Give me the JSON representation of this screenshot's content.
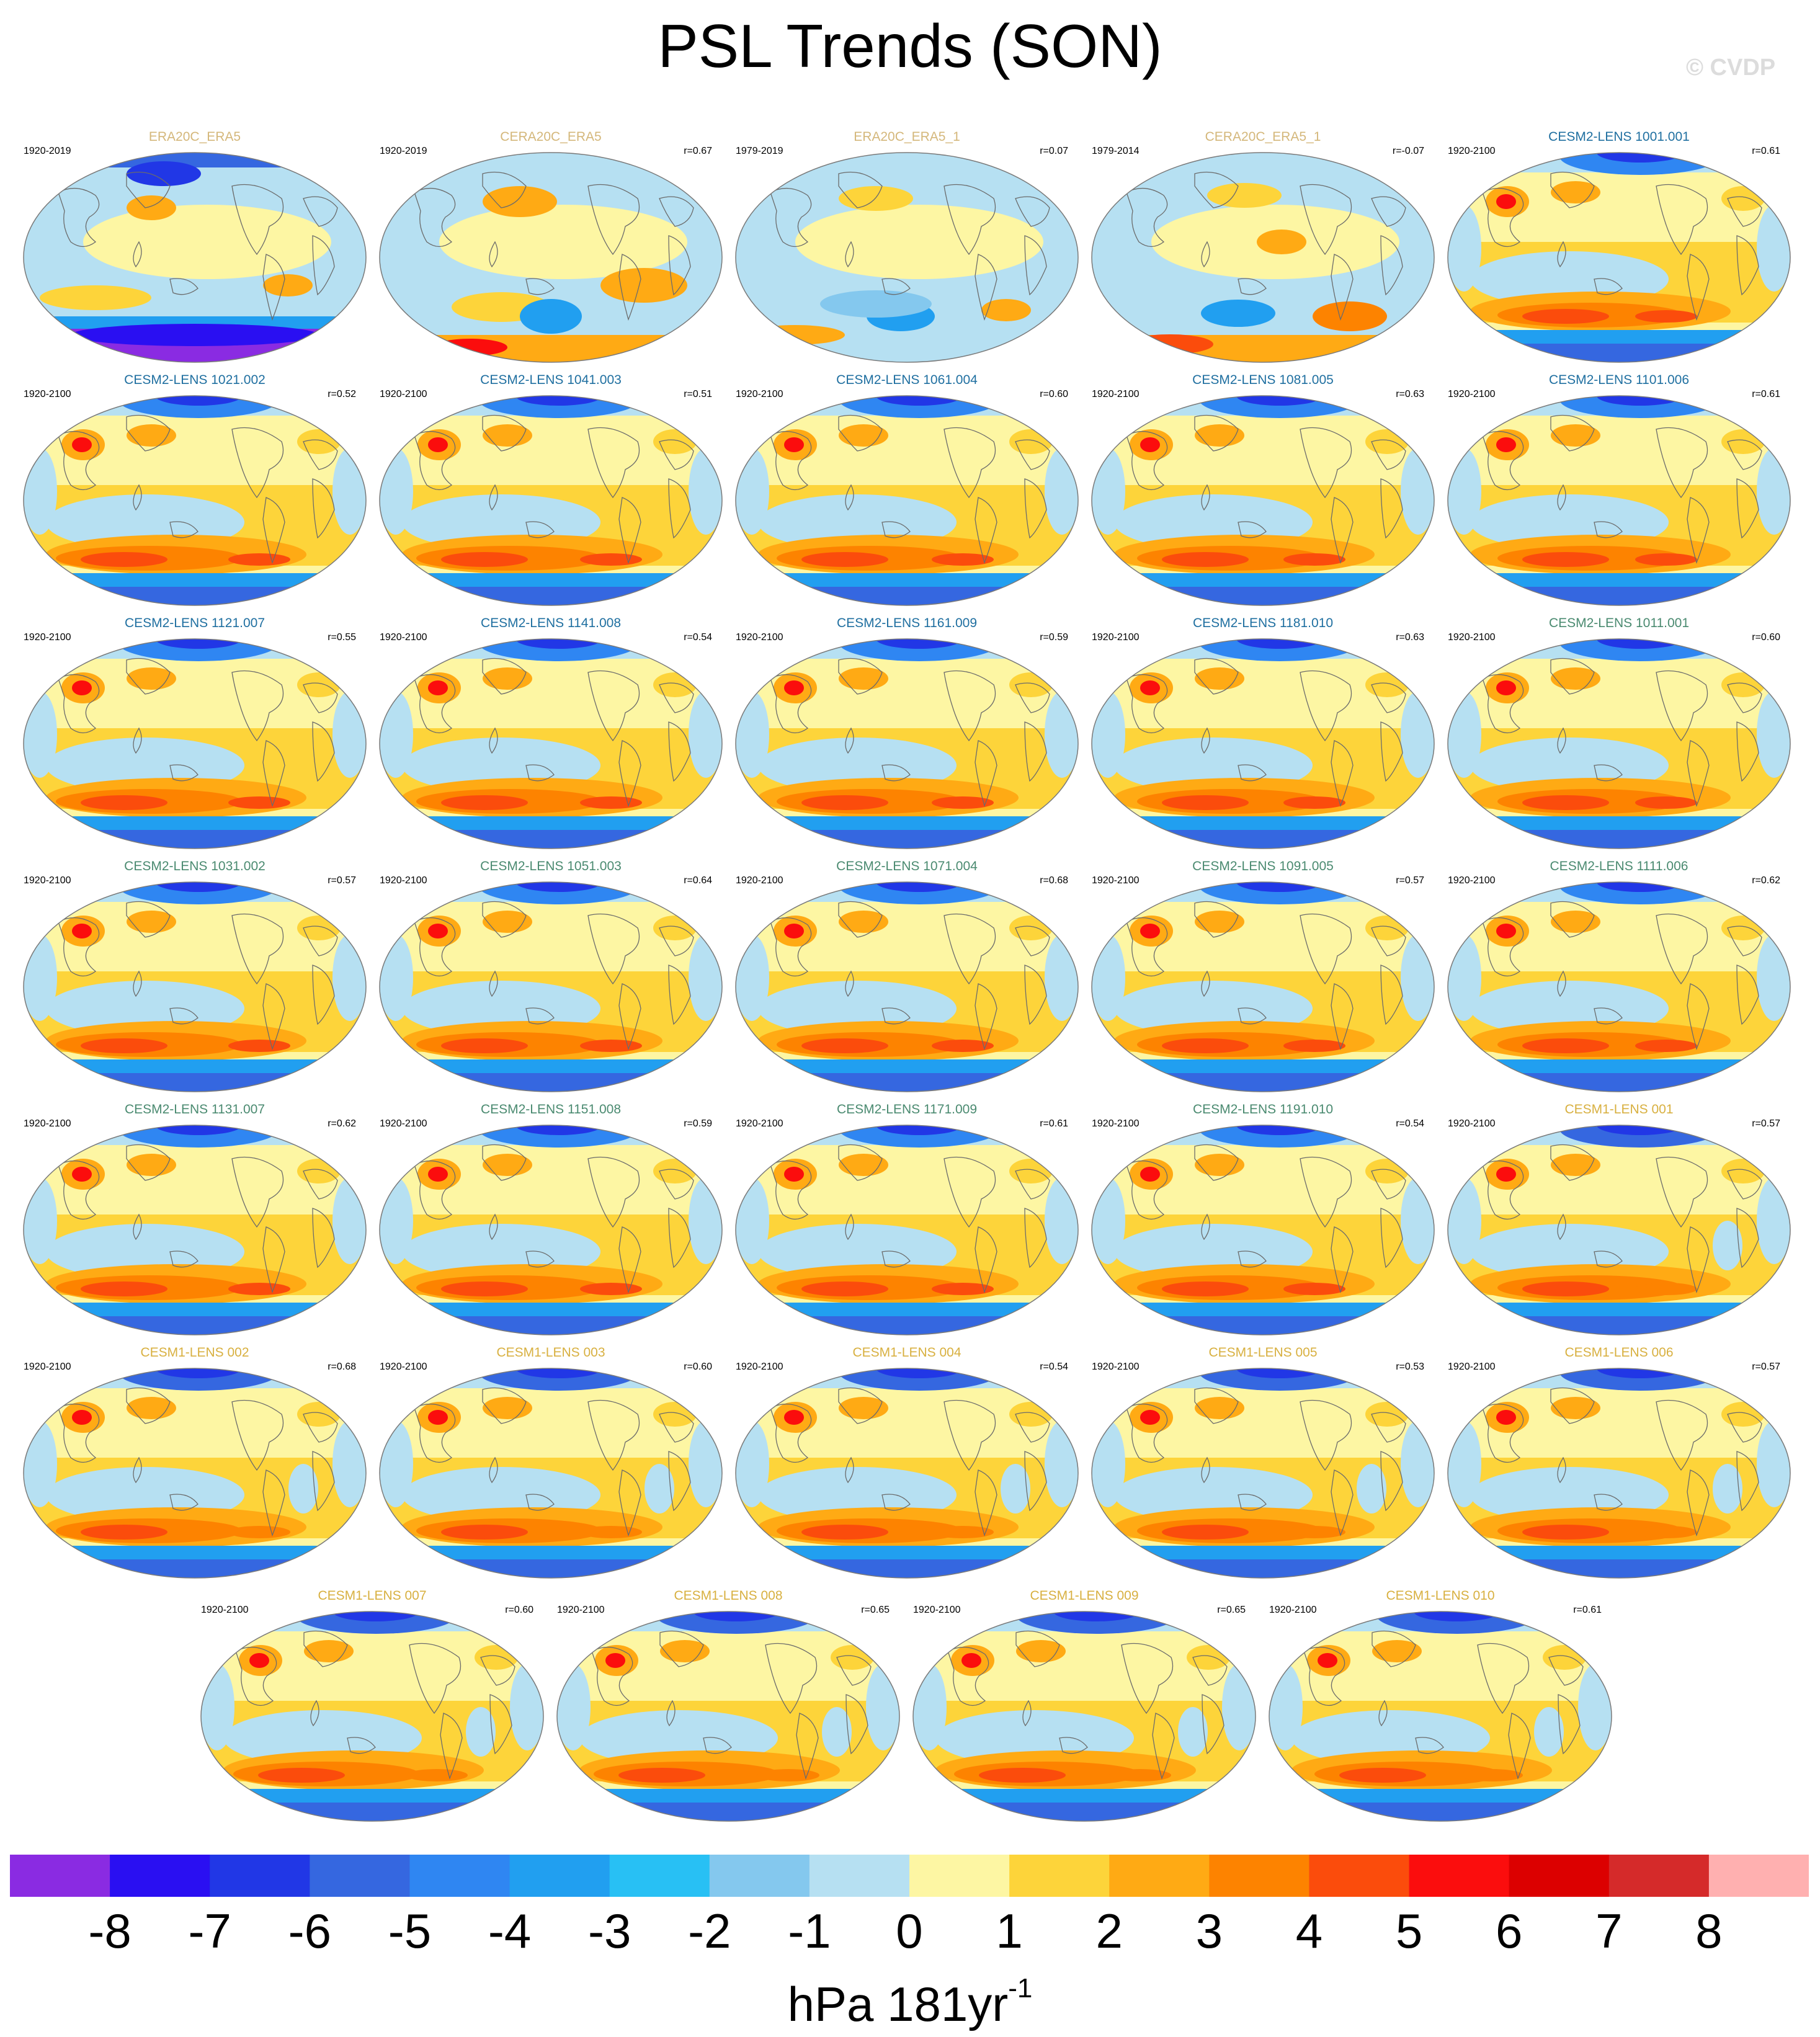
{
  "figure": {
    "title": "PSL Trends (SON)",
    "watermark": "© CVDP",
    "units_base": "hPa 181yr",
    "units_exp": "-1"
  },
  "colorbar": {
    "tick_labels": [
      "-8",
      "-7",
      "-6",
      "-5",
      "-4",
      "-3",
      "-2",
      "-1",
      "0",
      "1",
      "2",
      "3",
      "4",
      "5",
      "6",
      "7",
      "8"
    ],
    "colors": [
      "#8a2be2",
      "#2a0ff2",
      "#2137e6",
      "#3567e0",
      "#2f86f2",
      "#219ff0",
      "#28c0f4",
      "#84c8ee",
      "#b6e0f2",
      "#fdf6a3",
      "#fdd43a",
      "#ffaa14",
      "#fd8300",
      "#fb4c0c",
      "#fb0d0d",
      "#dc0000",
      "#d52a2a",
      "#ffb0b0"
    ]
  },
  "panels": [
    {
      "name": "ERA20C_ERA5",
      "period": "1920-2019",
      "r": "",
      "label_color": "#d4b77a",
      "pattern": "obs_a"
    },
    {
      "name": "CERA20C_ERA5",
      "period": "1920-2019",
      "r": "r=0.67",
      "label_color": "#d4b77a",
      "pattern": "obs_b"
    },
    {
      "name": "ERA20C_ERA5_1",
      "period": "1979-2019",
      "r": "r=0.07",
      "label_color": "#d4b77a",
      "pattern": "obs_c"
    },
    {
      "name": "CERA20C_ERA5_1",
      "period": "1979-2014",
      "r": "r=-0.07",
      "label_color": "#d4b77a",
      "pattern": "obs_d"
    },
    {
      "name": "CESM2-LENS 1001.001",
      "period": "1920-2100",
      "r": "r=0.61",
      "label_color": "#1f6fa0",
      "pattern": "model"
    },
    {
      "name": "CESM2-LENS 1021.002",
      "period": "1920-2100",
      "r": "r=0.52",
      "label_color": "#1f6fa0",
      "pattern": "model"
    },
    {
      "name": "CESM2-LENS 1041.003",
      "period": "1920-2100",
      "r": "r=0.51",
      "label_color": "#1f6fa0",
      "pattern": "model"
    },
    {
      "name": "CESM2-LENS 1061.004",
      "period": "1920-2100",
      "r": "r=0.60",
      "label_color": "#1f6fa0",
      "pattern": "model"
    },
    {
      "name": "CESM2-LENS 1081.005",
      "period": "1920-2100",
      "r": "r=0.63",
      "label_color": "#1f6fa0",
      "pattern": "model"
    },
    {
      "name": "CESM2-LENS 1101.006",
      "period": "1920-2100",
      "r": "r=0.61",
      "label_color": "#1f6fa0",
      "pattern": "model"
    },
    {
      "name": "CESM2-LENS 1121.007",
      "period": "1920-2100",
      "r": "r=0.55",
      "label_color": "#1f6fa0",
      "pattern": "model"
    },
    {
      "name": "CESM2-LENS 1141.008",
      "period": "1920-2100",
      "r": "r=0.54",
      "label_color": "#1f6fa0",
      "pattern": "model"
    },
    {
      "name": "CESM2-LENS 1161.009",
      "period": "1920-2100",
      "r": "r=0.59",
      "label_color": "#1f6fa0",
      "pattern": "model"
    },
    {
      "name": "CESM2-LENS 1181.010",
      "period": "1920-2100",
      "r": "r=0.63",
      "label_color": "#1f6fa0",
      "pattern": "model"
    },
    {
      "name": "CESM2-LENS 1011.001",
      "period": "1920-2100",
      "r": "r=0.60",
      "label_color": "#4a8a70",
      "pattern": "model"
    },
    {
      "name": "CESM2-LENS 1031.002",
      "period": "1920-2100",
      "r": "r=0.57",
      "label_color": "#4a8a70",
      "pattern": "model"
    },
    {
      "name": "CESM2-LENS 1051.003",
      "period": "1920-2100",
      "r": "r=0.64",
      "label_color": "#4a8a70",
      "pattern": "model"
    },
    {
      "name": "CESM2-LENS 1071.004",
      "period": "1920-2100",
      "r": "r=0.68",
      "label_color": "#4a8a70",
      "pattern": "model"
    },
    {
      "name": "CESM2-LENS 1091.005",
      "period": "1920-2100",
      "r": "r=0.57",
      "label_color": "#4a8a70",
      "pattern": "model"
    },
    {
      "name": "CESM2-LENS 1111.006",
      "period": "1920-2100",
      "r": "r=0.62",
      "label_color": "#4a8a70",
      "pattern": "model"
    },
    {
      "name": "CESM2-LENS 1131.007",
      "period": "1920-2100",
      "r": "r=0.62",
      "label_color": "#4a8a70",
      "pattern": "model"
    },
    {
      "name": "CESM2-LENS 1151.008",
      "period": "1920-2100",
      "r": "r=0.59",
      "label_color": "#4a8a70",
      "pattern": "model"
    },
    {
      "name": "CESM2-LENS 1171.009",
      "period": "1920-2100",
      "r": "r=0.61",
      "label_color": "#4a8a70",
      "pattern": "model"
    },
    {
      "name": "CESM2-LENS 1191.010",
      "period": "1920-2100",
      "r": "r=0.54",
      "label_color": "#4a8a70",
      "pattern": "model"
    },
    {
      "name": "CESM1-LENS 001",
      "period": "1920-2100",
      "r": "r=0.57",
      "label_color": "#d8b040",
      "pattern": "model1"
    },
    {
      "name": "CESM1-LENS 002",
      "period": "1920-2100",
      "r": "r=0.68",
      "label_color": "#d8b040",
      "pattern": "model1"
    },
    {
      "name": "CESM1-LENS 003",
      "period": "1920-2100",
      "r": "r=0.60",
      "label_color": "#d8b040",
      "pattern": "model1"
    },
    {
      "name": "CESM1-LENS 004",
      "period": "1920-2100",
      "r": "r=0.54",
      "label_color": "#d8b040",
      "pattern": "model1"
    },
    {
      "name": "CESM1-LENS 005",
      "period": "1920-2100",
      "r": "r=0.53",
      "label_color": "#d8b040",
      "pattern": "model1"
    },
    {
      "name": "CESM1-LENS 006",
      "period": "1920-2100",
      "r": "r=0.57",
      "label_color": "#d8b040",
      "pattern": "model1"
    },
    {
      "name": "CESM1-LENS 007",
      "period": "1920-2100",
      "r": "r=0.60",
      "label_color": "#d8b040",
      "pattern": "model1"
    },
    {
      "name": "CESM1-LENS 008",
      "period": "1920-2100",
      "r": "r=0.65",
      "label_color": "#d8b040",
      "pattern": "model1"
    },
    {
      "name": "CESM1-LENS 009",
      "period": "1920-2100",
      "r": "r=0.65",
      "label_color": "#d8b040",
      "pattern": "model1"
    },
    {
      "name": "CESM1-LENS 010",
      "period": "1920-2100",
      "r": "r=0.61",
      "label_color": "#d8b040",
      "pattern": "model1"
    }
  ]
}
